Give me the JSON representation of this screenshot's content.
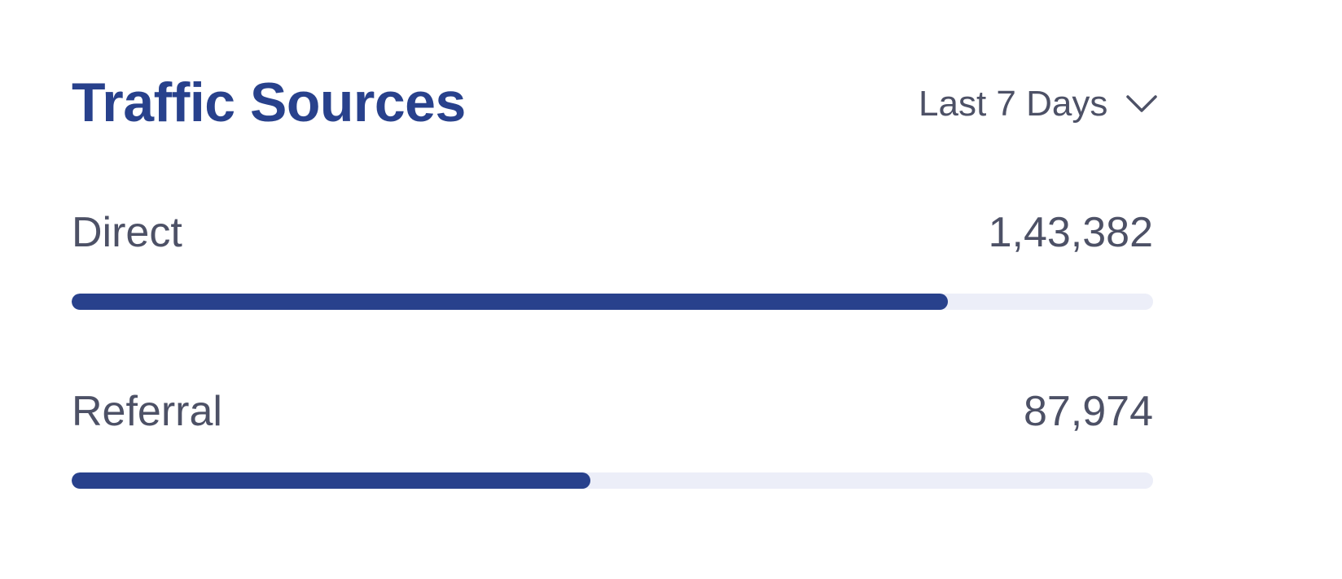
{
  "card": {
    "title": "Traffic Sources",
    "range": {
      "selected": "Last 7 Days",
      "icon": "chevron-down-icon"
    }
  },
  "sources": [
    {
      "label": "Direct",
      "value": "1,43,382",
      "progress_fraction": 0.81
    },
    {
      "label": "Referral",
      "value": "87,974",
      "progress_fraction": 0.48
    }
  ],
  "colors": {
    "accent": "#28418c",
    "track": "#eceef8",
    "text": "#4d5166"
  }
}
